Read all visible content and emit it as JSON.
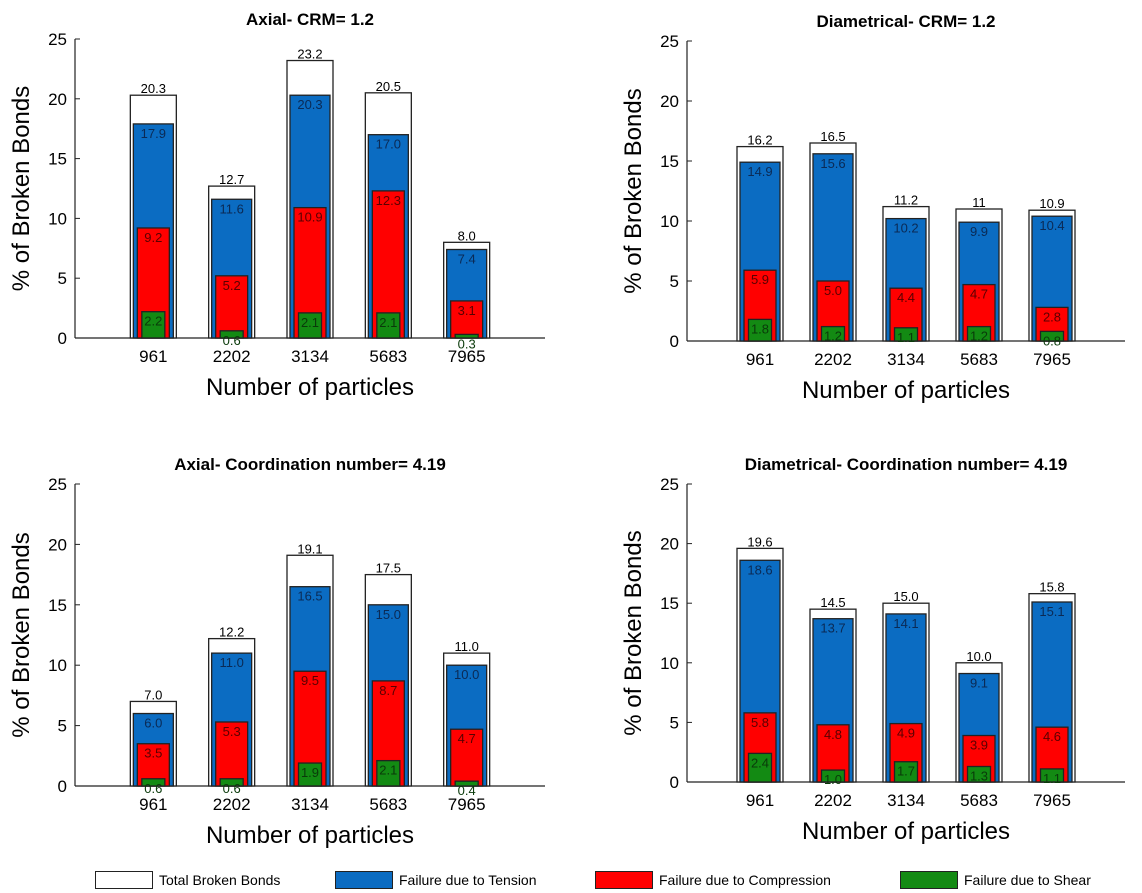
{
  "colors": {
    "total": "#ffffff",
    "tension": "#0b6cc2",
    "compression": "#ff0000",
    "shear": "#138a13",
    "outline": "#222222"
  },
  "legend": {
    "items": [
      {
        "label": "Total Broken Bonds",
        "color": "#ffffff"
      },
      {
        "label": "Failure due to Tension",
        "color": "#0b6cc2"
      },
      {
        "label": "Failure due to Compression",
        "color": "#ff0000"
      },
      {
        "label": "Failure due to Shear",
        "color": "#138a13"
      }
    ]
  },
  "chart_data": [
    {
      "type": "bar",
      "title": "Axial- CRM= 1.2",
      "xlabel": "Number of particles",
      "ylabel": "% of Broken Bonds",
      "ylim": [
        0,
        25
      ],
      "yticks": [
        "0",
        "5",
        "10",
        "15",
        "20",
        "25"
      ],
      "categories": [
        "961",
        "2202",
        "3134",
        "5683",
        "7965"
      ],
      "series": [
        {
          "name": "Total Broken Bonds",
          "values": [
            20.3,
            12.7,
            23.2,
            20.5,
            8.0
          ],
          "labels": [
            "20.3",
            "12.7",
            "23.2",
            "20.5",
            "8.0"
          ]
        },
        {
          "name": "Failure due to Tension",
          "values": [
            17.9,
            11.6,
            20.3,
            17.0,
            7.4
          ],
          "labels": [
            "17.9",
            "11.6",
            "20.3",
            "17.0",
            "7.4"
          ]
        },
        {
          "name": "Failure due to Compression",
          "values": [
            9.2,
            5.2,
            10.9,
            12.3,
            3.1
          ],
          "labels": [
            "9.2",
            "5.2",
            "10.9",
            "12.3",
            "3.1"
          ]
        },
        {
          "name": "Failure due to Shear",
          "values": [
            2.2,
            0.6,
            2.1,
            2.1,
            0.3
          ],
          "labels": [
            "2.2",
            "0.6",
            "2.1",
            "2.1",
            "0.3"
          ]
        }
      ]
    },
    {
      "type": "bar",
      "title": "Diametrical- CRM= 1.2",
      "xlabel": "Number of particles",
      "ylabel": "% of Broken Bonds",
      "ylim": [
        0,
        25
      ],
      "yticks": [
        "0",
        "5",
        "10",
        "15",
        "20",
        "25"
      ],
      "categories": [
        "961",
        "2202",
        "3134",
        "5683",
        "7965"
      ],
      "series": [
        {
          "name": "Total Broken Bonds",
          "values": [
            16.2,
            16.5,
            11.2,
            11,
            10.9
          ],
          "labels": [
            "16.2",
            "16.5",
            "11.2",
            "11",
            "10.9"
          ]
        },
        {
          "name": "Failure due to Tension",
          "values": [
            14.9,
            15.6,
            10.2,
            9.9,
            10.4
          ],
          "labels": [
            "14.9",
            "15.6",
            "10.2",
            "9.9",
            "10.4"
          ]
        },
        {
          "name": "Failure due to Compression",
          "values": [
            5.9,
            5.0,
            4.4,
            4.7,
            2.8
          ],
          "labels": [
            "5.9",
            "5.0",
            "4.4",
            "4.7",
            "2.8"
          ]
        },
        {
          "name": "Failure due to Shear",
          "values": [
            1.8,
            1.2,
            1.1,
            1.2,
            0.8
          ],
          "labels": [
            "1.8",
            "1.2",
            "1.1",
            "1.2",
            "0.8"
          ]
        }
      ]
    },
    {
      "type": "bar",
      "title": "Axial- Coordination number= 4.19",
      "xlabel": "Number of particles",
      "ylabel": "% of Broken Bonds",
      "ylim": [
        0,
        25
      ],
      "yticks": [
        "0",
        "5",
        "10",
        "15",
        "20",
        "25"
      ],
      "categories": [
        "961",
        "2202",
        "3134",
        "5683",
        "7965"
      ],
      "series": [
        {
          "name": "Total Broken Bonds",
          "values": [
            7.0,
            12.2,
            19.1,
            17.5,
            11.0
          ],
          "labels": [
            "7.0",
            "12.2",
            "19.1",
            "17.5",
            "11.0"
          ]
        },
        {
          "name": "Failure due to Tension",
          "values": [
            6.0,
            11.0,
            16.5,
            15.0,
            10.0
          ],
          "labels": [
            "6.0",
            "11.0",
            "16.5",
            "15.0",
            "10.0"
          ]
        },
        {
          "name": "Failure due to Compression",
          "values": [
            3.5,
            5.3,
            9.5,
            8.7,
            4.7
          ],
          "labels": [
            "3.5",
            "5.3",
            "9.5",
            "8.7",
            "4.7"
          ]
        },
        {
          "name": "Failure due to Shear",
          "values": [
            0.6,
            0.6,
            1.9,
            2.1,
            0.4
          ],
          "labels": [
            "0.6",
            "0.6",
            "1.9",
            "2.1",
            "0.4"
          ]
        }
      ]
    },
    {
      "type": "bar",
      "title": "Diametrical- Coordination number= 4.19",
      "xlabel": "Number of particles",
      "ylabel": "% of Broken Bonds",
      "ylim": [
        0,
        25
      ],
      "yticks": [
        "0",
        "5",
        "10",
        "15",
        "20",
        "25"
      ],
      "categories": [
        "961",
        "2202",
        "3134",
        "5683",
        "7965"
      ],
      "series": [
        {
          "name": "Total Broken Bonds",
          "values": [
            19.6,
            14.5,
            15.0,
            10.0,
            15.8
          ],
          "labels": [
            "19.6",
            "14.5",
            "15.0",
            "10.0",
            "15.8"
          ]
        },
        {
          "name": "Failure due to Tension",
          "values": [
            18.6,
            13.7,
            14.1,
            9.1,
            15.1
          ],
          "labels": [
            "18.6",
            "13.7",
            "14.1",
            "9.1",
            "15.1"
          ]
        },
        {
          "name": "Failure due to Compression",
          "values": [
            5.8,
            4.8,
            4.9,
            3.9,
            4.6
          ],
          "labels": [
            "5.8",
            "4.8",
            "4.9",
            "3.9",
            "4.6"
          ]
        },
        {
          "name": "Failure due to Shear",
          "values": [
            2.4,
            1.0,
            1.7,
            1.3,
            1.1
          ],
          "labels": [
            "2.4",
            "1.0",
            "1.7",
            "1.3",
            "1.1"
          ]
        }
      ]
    }
  ]
}
